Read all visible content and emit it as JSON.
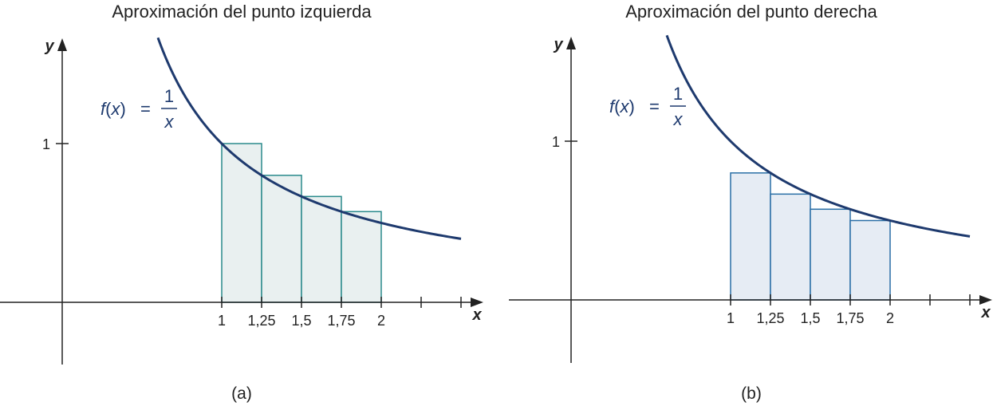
{
  "chart_data": [
    {
      "type": "area",
      "title": "Aproximación del punto izquierda",
      "caption": "(a)",
      "xlabel": "x",
      "ylabel": "y",
      "x_ticks": [
        "1",
        "1,25",
        "1,5",
        "1,75",
        "2"
      ],
      "y_ticks": [
        "1"
      ],
      "function": {
        "f": "f",
        "var": "x",
        "eq": "=",
        "num": "1",
        "den": "x"
      },
      "curve_domain": [
        0.6,
        2.5
      ],
      "rule": "left",
      "rectangles": [
        {
          "x0": 1.0,
          "x1": 1.25,
          "height": 1.0
        },
        {
          "x0": 1.25,
          "x1": 1.5,
          "height": 0.8
        },
        {
          "x0": 1.5,
          "x1": 1.75,
          "height": 0.6667
        },
        {
          "x0": 1.75,
          "x1": 2.0,
          "height": 0.5714
        }
      ],
      "colors": {
        "curve": "#1e3a6e",
        "rect_fill": "#e9f0f0",
        "rect_stroke": "#2a8a8c"
      }
    },
    {
      "type": "area",
      "title": "Aproximación del punto derecha",
      "caption": "(b)",
      "xlabel": "x",
      "ylabel": "y",
      "x_ticks": [
        "1",
        "1,25",
        "1,5",
        "1,75",
        "2"
      ],
      "y_ticks": [
        "1"
      ],
      "function": {
        "f": "f",
        "var": "x",
        "eq": "=",
        "num": "1",
        "den": "x"
      },
      "curve_domain": [
        0.6,
        2.5
      ],
      "rule": "right",
      "rectangles": [
        {
          "x0": 1.0,
          "x1": 1.25,
          "height": 0.8
        },
        {
          "x0": 1.25,
          "x1": 1.5,
          "height": 0.6667
        },
        {
          "x0": 1.5,
          "x1": 1.75,
          "height": 0.5714
        },
        {
          "x0": 1.75,
          "x1": 2.0,
          "height": 0.5
        }
      ],
      "colors": {
        "curve": "#1e3a6e",
        "rect_fill": "#e6ecf4",
        "rect_stroke": "#2a6fa6"
      }
    }
  ]
}
